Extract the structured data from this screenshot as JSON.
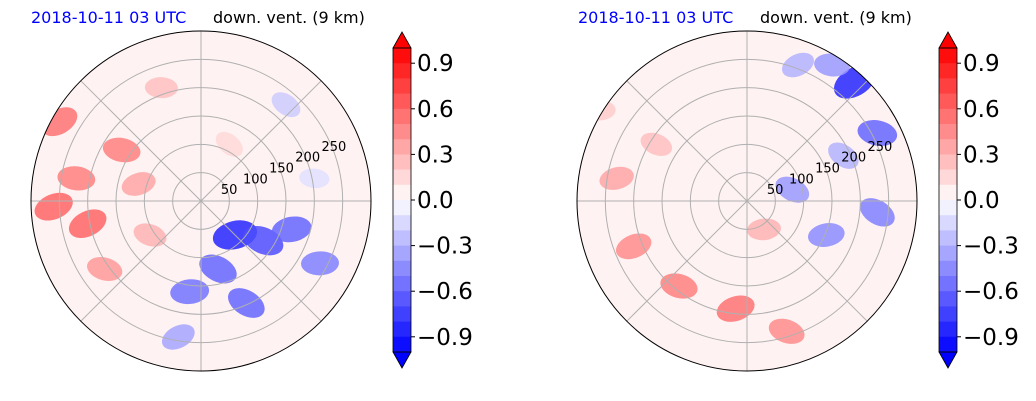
{
  "chart_data": [
    {
      "type": "heatmap",
      "title_left": "2018-10-11 03 UTC",
      "title_right": "down. vent. (9 km)",
      "radial_ticks": [
        "50",
        "100",
        "150",
        "200",
        "250"
      ],
      "radial_tick_values": [
        50,
        100,
        150,
        200,
        250
      ],
      "rmax": 300,
      "grid": true,
      "colormap": "bwr",
      "colorbar": {
        "vmin": -1.0,
        "vmax": 1.0,
        "extend": "both",
        "levels": 20,
        "ticks": [
          "0.9",
          "0.6",
          "0.3",
          "0.0",
          "−0.3",
          "−0.6",
          "−0.9"
        ],
        "tick_values": [
          0.9,
          0.6,
          0.3,
          0.0,
          -0.3,
          -0.6,
          -0.9
        ]
      },
      "colors": {
        "positive": "#ff0000",
        "negative": "#0000ff",
        "title_time": "#0000ff"
      },
      "blobs": [
        {
          "x": -250,
          "y": 140,
          "v": 0.55
        },
        {
          "x": -220,
          "y": 40,
          "v": 0.5
        },
        {
          "x": -200,
          "y": -40,
          "v": 0.6
        },
        {
          "x": -140,
          "y": 90,
          "v": 0.5
        },
        {
          "x": -260,
          "y": -10,
          "v": 0.6
        },
        {
          "x": -170,
          "y": -120,
          "v": 0.4
        },
        {
          "x": -110,
          "y": 30,
          "v": 0.35
        },
        {
          "x": -90,
          "y": -60,
          "v": 0.3
        },
        {
          "x": 60,
          "y": -60,
          "v": -0.85
        },
        {
          "x": 110,
          "y": -70,
          "v": -0.7
        },
        {
          "x": 160,
          "y": -50,
          "v": -0.6
        },
        {
          "x": 30,
          "y": -120,
          "v": -0.6
        },
        {
          "x": -20,
          "y": -160,
          "v": -0.55
        },
        {
          "x": 80,
          "y": -180,
          "v": -0.6
        },
        {
          "x": 210,
          "y": -110,
          "v": -0.5
        },
        {
          "x": 150,
          "y": 170,
          "v": -0.2
        },
        {
          "x": -70,
          "y": 200,
          "v": 0.25
        },
        {
          "x": 50,
          "y": 100,
          "v": 0.15
        },
        {
          "x": 200,
          "y": 40,
          "v": -0.12
        },
        {
          "x": -40,
          "y": -240,
          "v": -0.35
        }
      ]
    },
    {
      "type": "heatmap",
      "title_left": "2018-10-11 03 UTC",
      "title_right": "down. vent. (9 km)",
      "radial_ticks": [
        "50",
        "100",
        "150",
        "200",
        "250"
      ],
      "radial_tick_values": [
        50,
        100,
        150,
        200,
        250
      ],
      "rmax": 300,
      "grid": true,
      "colormap": "bwr",
      "colorbar": {
        "vmin": -1.0,
        "vmax": 1.0,
        "extend": "both",
        "levels": 20,
        "ticks": [
          "0.9",
          "0.6",
          "0.3",
          "0.0",
          "−0.3",
          "−0.6",
          "−0.9"
        ],
        "tick_values": [
          0.9,
          0.6,
          0.3,
          0.0,
          -0.3,
          -0.6,
          -0.9
        ]
      },
      "colors": {
        "positive": "#ff0000",
        "negative": "#0000ff",
        "title_time": "#0000ff"
      },
      "blobs": [
        {
          "x": 190,
          "y": 210,
          "v": -0.85
        },
        {
          "x": 150,
          "y": 240,
          "v": -0.4
        },
        {
          "x": 90,
          "y": 240,
          "v": -0.3
        },
        {
          "x": 230,
          "y": 120,
          "v": -0.6
        },
        {
          "x": -200,
          "y": -80,
          "v": 0.45
        },
        {
          "x": -120,
          "y": -150,
          "v": 0.5
        },
        {
          "x": -20,
          "y": -190,
          "v": 0.55
        },
        {
          "x": 70,
          "y": -230,
          "v": 0.45
        },
        {
          "x": -230,
          "y": 40,
          "v": 0.35
        },
        {
          "x": -160,
          "y": 100,
          "v": 0.25
        },
        {
          "x": 140,
          "y": -60,
          "v": -0.45
        },
        {
          "x": 80,
          "y": 20,
          "v": -0.4
        },
        {
          "x": 30,
          "y": -50,
          "v": 0.3
        },
        {
          "x": 230,
          "y": -20,
          "v": -0.5
        },
        {
          "x": -260,
          "y": 160,
          "v": 0.2
        },
        {
          "x": 170,
          "y": 80,
          "v": -0.3
        }
      ]
    }
  ]
}
